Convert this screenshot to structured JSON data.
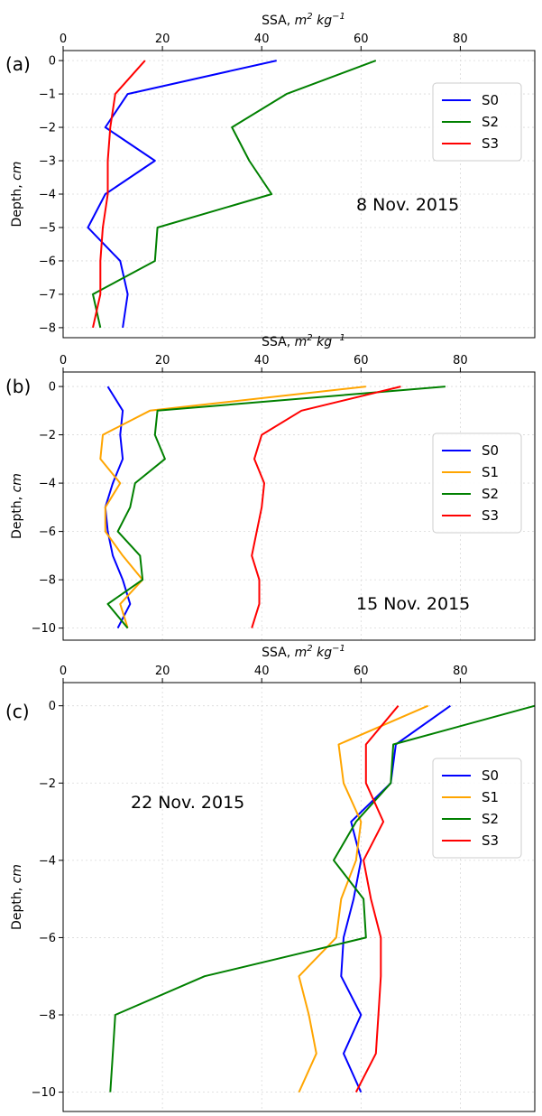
{
  "chart_data": [
    {
      "type": "line",
      "panel_label": "(a)",
      "title": "",
      "xlabel": "SSA, m² kg⁻¹",
      "ylabel": "Depth, cm",
      "xlim": [
        0,
        95
      ],
      "ylim": [
        -8.3,
        0.3
      ],
      "xticks": [
        0,
        20,
        40,
        60,
        80
      ],
      "yticks": [
        0,
        -1,
        -2,
        -3,
        -4,
        -5,
        -6,
        -7,
        -8
      ],
      "x_axis_position": "top",
      "grid": true,
      "legend_position": "top-right",
      "annotation": "8 Nov. 2015",
      "series": [
        {
          "name": "S0",
          "color": "#0000ff",
          "x": [
            43,
            13,
            8.5,
            18.5,
            8.5,
            5,
            11.5,
            13,
            12
          ],
          "y": [
            0,
            -1,
            -2,
            -3,
            -4,
            -5,
            -6,
            -7,
            -8
          ]
        },
        {
          "name": "S2",
          "color": "#008000",
          "x": [
            63,
            45,
            34,
            37.5,
            42,
            19,
            18.5,
            6,
            7.5
          ],
          "y": [
            0,
            -1,
            -2,
            -3,
            -4,
            -5,
            -6,
            -7,
            -8
          ]
        },
        {
          "name": "S3",
          "color": "#ff0000",
          "x": [
            16.5,
            10.5,
            9.5,
            9,
            9,
            8,
            7.5,
            7.5,
            6
          ],
          "y": [
            0,
            -1,
            -2,
            -3,
            -4,
            -5,
            -6,
            -7,
            -8
          ]
        }
      ]
    },
    {
      "type": "line",
      "panel_label": "(b)",
      "title": "",
      "xlabel": "SSA, m² kg⁻¹",
      "ylabel": "Depth, cm",
      "xlim": [
        0,
        95
      ],
      "ylim": [
        -10.5,
        0.6
      ],
      "xticks": [
        0,
        20,
        40,
        60,
        80
      ],
      "yticks": [
        0,
        -2,
        -4,
        -6,
        -8,
        -10
      ],
      "x_axis_position": "top",
      "grid": true,
      "legend_position": "top-right",
      "annotation": "15 Nov. 2015",
      "series": [
        {
          "name": "S0",
          "color": "#0000ff",
          "x": [
            9,
            12,
            11.5,
            12,
            10,
            8.5,
            9,
            10,
            12,
            13.5,
            11
          ],
          "y": [
            0,
            -1,
            -2,
            -3,
            -4,
            -5,
            -6,
            -7,
            -8,
            -9,
            -10
          ]
        },
        {
          "name": "S1",
          "color": "#ffa500",
          "x": [
            61,
            17.5,
            8,
            7.5,
            11.5,
            8.5,
            8.5,
            12,
            16,
            11.5,
            13
          ],
          "y": [
            0,
            -1,
            -2,
            -3,
            -4,
            -5,
            -6,
            -7,
            -8,
            -9,
            -10
          ]
        },
        {
          "name": "S2",
          "color": "#008000",
          "x": [
            77,
            19,
            18.5,
            20.5,
            14.5,
            13.5,
            11,
            15.5,
            16,
            9,
            13
          ],
          "y": [
            0,
            -1,
            -2,
            -3,
            -4,
            -5,
            -6,
            -7,
            -8,
            -9,
            -10
          ]
        },
        {
          "name": "S3",
          "color": "#ff0000",
          "x": [
            68,
            48,
            40,
            38.5,
            40.5,
            40,
            39,
            38,
            39.5,
            39.5,
            38
          ],
          "y": [
            0,
            -1,
            -2,
            -3,
            -4,
            -5,
            -6,
            -7,
            -8,
            -9,
            -10
          ]
        }
      ]
    },
    {
      "type": "line",
      "panel_label": "(c)",
      "title": "",
      "xlabel": "SSA, m² kg⁻¹",
      "ylabel": "Depth, cm",
      "xlim": [
        0,
        95
      ],
      "ylim": [
        -10.5,
        0.6
      ],
      "xticks": [
        0,
        20,
        40,
        60,
        80
      ],
      "yticks": [
        0,
        -2,
        -4,
        -6,
        -8,
        -10
      ],
      "x_axis_position": "top",
      "grid": true,
      "legend_position": "top-right",
      "annotation": "22 Nov. 2015",
      "series": [
        {
          "name": "S0",
          "color": "#0000ff",
          "x": [
            78,
            67,
            66,
            58,
            60,
            58.5,
            56.5,
            56,
            60,
            56.5,
            60
          ],
          "y": [
            0,
            -1,
            -2,
            -3,
            -4,
            -5,
            -6,
            -7,
            -8,
            -9,
            -10
          ]
        },
        {
          "name": "S1",
          "color": "#ffa500",
          "x": [
            73.5,
            55.5,
            56.5,
            60,
            59,
            56,
            55,
            47.5,
            49.5,
            51,
            47.5
          ],
          "y": [
            0,
            -1,
            -2,
            -3,
            -4,
            -5,
            -6,
            -7,
            -8,
            -9,
            -10
          ]
        },
        {
          "name": "S2",
          "color": "#008000",
          "x": [
            95,
            66.5,
            66,
            59,
            54.5,
            60.5,
            61,
            28.5,
            10.5,
            10,
            9.5
          ],
          "y": [
            0,
            -1,
            -2,
            -3,
            -4,
            -5,
            -6,
            -7,
            -8,
            -9,
            -10
          ]
        },
        {
          "name": "S3",
          "color": "#ff0000",
          "x": [
            67.5,
            61,
            61,
            64.5,
            60.5,
            62,
            64,
            64,
            63.5,
            63,
            59
          ],
          "y": [
            0,
            -1,
            -2,
            -3,
            -4,
            -5,
            -6,
            -7,
            -8,
            -9,
            -10
          ]
        }
      ]
    }
  ]
}
